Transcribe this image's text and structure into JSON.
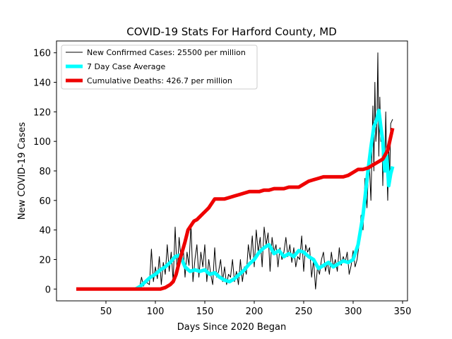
{
  "chart_data": {
    "type": "line",
    "title": "COVID-19 Stats For Harford County, MD",
    "xlabel": "Days Since 2020 Began",
    "ylabel": "New COVID-19 Cases",
    "xlim": [
      0,
      355
    ],
    "ylim": [
      -8,
      168
    ],
    "xticks": [
      50,
      100,
      150,
      200,
      250,
      300,
      350
    ],
    "yticks": [
      0,
      20,
      40,
      60,
      80,
      100,
      120,
      140,
      160
    ],
    "grid": false,
    "legend_position": "top-left",
    "series": [
      {
        "name": "New Confirmed Cases: 25500 per million",
        "color": "#000000",
        "width": 1,
        "x": [
          80,
          84,
          86,
          88,
          90,
          92,
          94,
          96,
          98,
          100,
          102,
          104,
          106,
          108,
          110,
          112,
          114,
          116,
          118,
          120,
          122,
          124,
          126,
          128,
          130,
          132,
          134,
          136,
          138,
          140,
          142,
          144,
          146,
          148,
          150,
          152,
          154,
          156,
          158,
          160,
          162,
          164,
          166,
          168,
          170,
          172,
          174,
          176,
          178,
          180,
          182,
          184,
          186,
          188,
          190,
          192,
          194,
          196,
          198,
          200,
          202,
          204,
          206,
          208,
          210,
          212,
          214,
          216,
          218,
          220,
          222,
          224,
          226,
          228,
          230,
          232,
          234,
          236,
          238,
          240,
          242,
          244,
          246,
          248,
          250,
          252,
          254,
          256,
          258,
          260,
          262,
          264,
          266,
          268,
          270,
          272,
          274,
          276,
          278,
          280,
          282,
          284,
          286,
          288,
          290,
          292,
          294,
          296,
          298,
          300,
          302,
          304,
          306,
          308,
          310,
          312,
          314,
          316,
          318,
          320,
          321,
          322,
          323,
          324,
          325,
          326,
          327,
          328,
          329,
          330,
          331,
          332,
          333,
          334,
          335,
          336,
          337,
          338,
          340
        ],
        "y": [
          0,
          1,
          8,
          2,
          5,
          4,
          3,
          27,
          5,
          15,
          7,
          22,
          3,
          18,
          10,
          30,
          12,
          25,
          5,
          42,
          10,
          35,
          20,
          30,
          8,
          25,
          16,
          44,
          5,
          20,
          30,
          8,
          25,
          15,
          30,
          5,
          20,
          10,
          3,
          28,
          8,
          12,
          20,
          5,
          15,
          3,
          10,
          8,
          20,
          5,
          12,
          3,
          20,
          5,
          15,
          10,
          30,
          20,
          36,
          15,
          40,
          25,
          35,
          15,
          42,
          30,
          38,
          12,
          35,
          25,
          30,
          15,
          28,
          20,
          25,
          35,
          22,
          30,
          18,
          28,
          15,
          22,
          20,
          36,
          12,
          30,
          25,
          28,
          8,
          20,
          0,
          15,
          10,
          20,
          25,
          12,
          18,
          10,
          25,
          15,
          20,
          12,
          28,
          16,
          22,
          18,
          25,
          10,
          16,
          26,
          15,
          20,
          30,
          50,
          40,
          75,
          55,
          90,
          60,
          124,
          80,
          140,
          100,
          110,
          160,
          90,
          130,
          100,
          110,
          70,
          100,
          80,
          120,
          85,
          60,
          95,
          75,
          112,
          115
        ]
      },
      {
        "name": "7 Day Case Average",
        "color": "#00ffff",
        "width": 5,
        "x": [
          80,
          85,
          90,
          95,
          100,
          105,
          110,
          115,
          120,
          125,
          130,
          135,
          140,
          145,
          150,
          155,
          160,
          165,
          170,
          175,
          180,
          185,
          190,
          195,
          200,
          205,
          210,
          215,
          220,
          225,
          230,
          235,
          240,
          245,
          250,
          255,
          260,
          265,
          270,
          275,
          280,
          285,
          290,
          295,
          300,
          305,
          310,
          315,
          318,
          321,
          324,
          326,
          328,
          330,
          332,
          334,
          336,
          338,
          340
        ],
        "y": [
          0,
          2,
          5,
          8,
          10,
          13,
          15,
          18,
          22,
          23,
          15,
          12,
          13,
          12,
          13,
          10,
          11,
          8,
          6,
          5,
          7,
          10,
          13,
          17,
          20,
          25,
          28,
          30,
          24,
          26,
          22,
          24,
          22,
          26,
          25,
          22,
          20,
          14,
          16,
          18,
          15,
          17,
          19,
          18,
          20,
          30,
          50,
          80,
          96,
          110,
          115,
          121,
          110,
          100,
          80,
          90,
          70,
          78,
          83
        ]
      },
      {
        "name": "Cumulative Deaths: 426.7 per million",
        "color": "#ee0000",
        "width": 5,
        "x": [
          20,
          40,
          60,
          80,
          100,
          105,
          110,
          115,
          118,
          121,
          124,
          127,
          130,
          133,
          136,
          139,
          142,
          145,
          148,
          151,
          154,
          157,
          160,
          165,
          170,
          175,
          180,
          185,
          190,
          195,
          200,
          205,
          210,
          215,
          220,
          225,
          230,
          235,
          240,
          245,
          250,
          255,
          260,
          265,
          270,
          275,
          280,
          285,
          290,
          295,
          300,
          305,
          310,
          315,
          320,
          325,
          330,
          335,
          340
        ],
        "y": [
          0,
          0,
          0,
          0,
          0,
          0,
          1,
          3,
          5,
          10,
          18,
          25,
          32,
          40,
          43,
          46,
          47,
          49,
          51,
          53,
          55,
          58,
          61,
          61,
          61,
          62,
          63,
          64,
          65,
          66,
          66,
          66,
          67,
          67,
          68,
          68,
          68,
          69,
          69,
          69,
          71,
          73,
          74,
          75,
          76,
          76,
          76,
          76,
          76,
          77,
          79,
          81,
          81,
          82,
          84,
          86,
          88,
          94,
          109
        ]
      }
    ]
  }
}
